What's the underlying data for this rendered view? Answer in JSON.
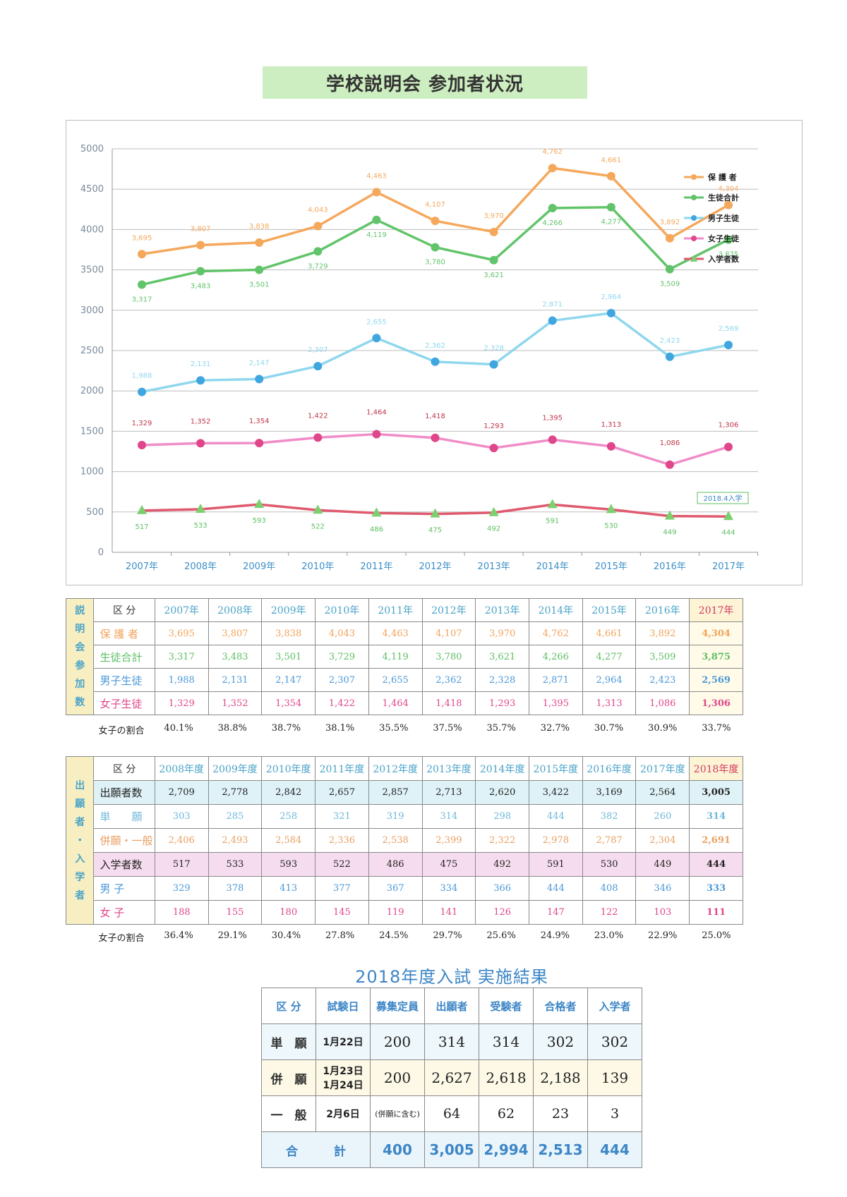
{
  "title": "学校説明会 参加者状況",
  "chart_data": {
    "type": "line",
    "categories": [
      "2007年",
      "2008年",
      "2009年",
      "2010年",
      "2011年",
      "2012年",
      "2013年",
      "2014年",
      "2015年",
      "2016年",
      "2017年"
    ],
    "ylim": [
      0,
      5000
    ],
    "yticks": [
      0,
      500,
      1000,
      1500,
      2000,
      2500,
      3000,
      3500,
      4000,
      4500,
      5000
    ],
    "grid": true,
    "legend_placement": "right",
    "annotation": "2018.4入学",
    "series": [
      {
        "name": "保 護 者",
        "color": "#f5a85c",
        "marker": "circle",
        "values": [
          3695,
          3807,
          3838,
          4043,
          4463,
          4107,
          3970,
          4762,
          4661,
          3892,
          4304
        ],
        "labels": [
          "3,695",
          "3,807",
          "3,838",
          "4,043",
          "4,463",
          "4,107",
          "3,970",
          "4,762",
          "4,661",
          "3,892",
          "4,304"
        ]
      },
      {
        "name": "生徒合計",
        "color": "#62c46a",
        "marker": "circle",
        "values": [
          3317,
          3483,
          3501,
          3729,
          4119,
          3780,
          3621,
          4266,
          4277,
          3509,
          3875
        ],
        "labels": [
          "3,317",
          "3,483",
          "3,501",
          "3,729",
          "4,119",
          "3,780",
          "3,621",
          "4,266",
          "4,277",
          "3,509",
          "3,875"
        ]
      },
      {
        "name": "男子生徒",
        "color": "#8fd7ee",
        "markercolor": "#3fa6e0",
        "marker": "circle",
        "values": [
          1988,
          2131,
          2147,
          2307,
          2655,
          2362,
          2328,
          2871,
          2964,
          2423,
          2569
        ],
        "labels": [
          "1,988",
          "2,131",
          "2,147",
          "2,307",
          "2,655",
          "2,362",
          "2,328",
          "2,871",
          "2,964",
          "2,423",
          "2,569"
        ]
      },
      {
        "name": "女子生徒",
        "color": "#f08cc8",
        "markercolor": "#e0468a",
        "marker": "circle",
        "labelcolor": "#c0364a",
        "values": [
          1329,
          1352,
          1354,
          1422,
          1464,
          1418,
          1293,
          1395,
          1313,
          1086,
          1306
        ],
        "labels": [
          "1,329",
          "1,352",
          "1,354",
          "1,422",
          "1,464",
          "1,418",
          "1,293",
          "1,395",
          "1,313",
          "1,086",
          "1,306"
        ]
      },
      {
        "name": "入学者数",
        "color": "#e05a6e",
        "markercolor": "#7ccf6e",
        "marker": "triangle",
        "labelcolor": "#5bbf62",
        "values": [
          517,
          533,
          593,
          522,
          486,
          475,
          492,
          591,
          530,
          449,
          444
        ],
        "labels": [
          "517",
          "533",
          "593",
          "522",
          "486",
          "475",
          "492",
          "591",
          "530",
          "449",
          "444"
        ]
      }
    ]
  },
  "table1": {
    "side_label": "説明会参加数",
    "header_label": "区 分",
    "years": [
      "2007年",
      "2008年",
      "2009年",
      "2010年",
      "2011年",
      "2012年",
      "2013年",
      "2014年",
      "2015年",
      "2016年",
      "2017年"
    ],
    "rows": [
      {
        "label": "保 護 者",
        "cls": "c-hogo",
        "values": [
          "3,695",
          "3,807",
          "3,838",
          "4,043",
          "4,463",
          "4,107",
          "3,970",
          "4,762",
          "4,661",
          "3,892",
          "4,304"
        ]
      },
      {
        "label": "生徒合計",
        "cls": "c-seito",
        "values": [
          "3,317",
          "3,483",
          "3,501",
          "3,729",
          "4,119",
          "3,780",
          "3,621",
          "4,266",
          "4,277",
          "3,509",
          "3,875"
        ]
      },
      {
        "label": "男子生徒",
        "cls": "c-boy",
        "values": [
          "1,988",
          "2,131",
          "2,147",
          "2,307",
          "2,655",
          "2,362",
          "2,328",
          "2,871",
          "2,964",
          "2,423",
          "2,569"
        ]
      },
      {
        "label": "女子生徒",
        "cls": "c-girl",
        "values": [
          "1,329",
          "1,352",
          "1,354",
          "1,422",
          "1,464",
          "1,418",
          "1,293",
          "1,395",
          "1,313",
          "1,086",
          "1,306"
        ]
      }
    ],
    "ratio_label": "女子の割合",
    "ratios": [
      "40.1%",
      "38.8%",
      "38.7%",
      "38.1%",
      "35.5%",
      "37.5%",
      "35.7%",
      "32.7%",
      "30.7%",
      "30.9%",
      "33.7%"
    ]
  },
  "table2": {
    "side_label": "出願者・入学者",
    "header_label": "区 分",
    "years": [
      "2008年度",
      "2009年度",
      "2010年度",
      "2011年度",
      "2012年度",
      "2013年度",
      "2014年度",
      "2015年度",
      "2016年度",
      "2017年度",
      "2018年度"
    ],
    "rows": [
      {
        "label": "出願者数",
        "bg": "#dff2f8",
        "color": "#222",
        "values": [
          "2,709",
          "2,778",
          "2,842",
          "2,657",
          "2,857",
          "2,713",
          "2,620",
          "3,422",
          "3,169",
          "2,564",
          "3,005"
        ]
      },
      {
        "label": "単　　願",
        "bg": "#ffffff",
        "color": "#6fb8da",
        "values": [
          "303",
          "285",
          "258",
          "321",
          "319",
          "314",
          "298",
          "444",
          "382",
          "260",
          "314"
        ]
      },
      {
        "label": "併願・一般",
        "bg": "#ffffff",
        "color": "#e8a060",
        "values": [
          "2,406",
          "2,493",
          "2,584",
          "2,336",
          "2,538",
          "2,399",
          "2,322",
          "2,978",
          "2,787",
          "2,304",
          "2,691"
        ]
      },
      {
        "label": "入学者数",
        "bg": "#f6dcef",
        "color": "#222",
        "values": [
          "517",
          "533",
          "593",
          "522",
          "486",
          "475",
          "492",
          "591",
          "530",
          "449",
          "444"
        ]
      },
      {
        "label": "男 子",
        "bg": "#ffffff",
        "color": "#4a98d8",
        "values": [
          "329",
          "378",
          "413",
          "377",
          "367",
          "334",
          "366",
          "444",
          "408",
          "346",
          "333"
        ]
      },
      {
        "label": "女 子",
        "bg": "#ffffff",
        "color": "#e0468a",
        "values": [
          "188",
          "155",
          "180",
          "145",
          "119",
          "141",
          "126",
          "147",
          "122",
          "103",
          "111"
        ]
      }
    ],
    "ratio_label": "女子の割合",
    "ratios": [
      "36.4%",
      "29.1%",
      "30.4%",
      "27.8%",
      "24.5%",
      "29.7%",
      "25.6%",
      "24.9%",
      "23.0%",
      "22.9%",
      "25.0%"
    ]
  },
  "results": {
    "title": "2018年度入試 実施結果",
    "headers": [
      "区 分",
      "試験日",
      "募集定員",
      "出願者",
      "受験者",
      "合格者",
      "入学者"
    ],
    "rows": [
      {
        "label": "単　願",
        "date": "1月22日",
        "cells": [
          "200",
          "314",
          "314",
          "302",
          "302"
        ]
      },
      {
        "label": "併　願",
        "date": "1月23日\n1月24日",
        "cells": [
          "200",
          "2,627",
          "2,618",
          "2,188",
          "139"
        ]
      },
      {
        "label": "一　般",
        "date": "2月6日",
        "cells": [
          "(併願に含む)",
          "64",
          "62",
          "23",
          "3"
        ]
      },
      {
        "label": "合　　　計",
        "date": "",
        "cells": [
          "400",
          "3,005",
          "2,994",
          "2,513",
          "444"
        ]
      }
    ]
  }
}
